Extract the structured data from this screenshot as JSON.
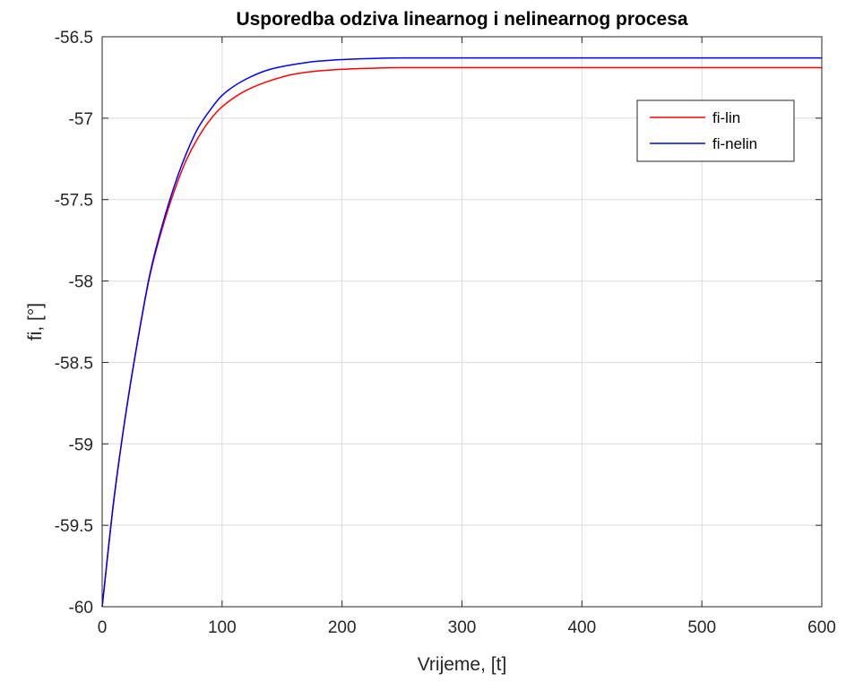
{
  "chart_data": {
    "type": "line",
    "title": "Usporedba odziva linearnog i nelinearnog procesa",
    "xlabel": "Vrijeme, [t]",
    "ylabel": "fi, [°]",
    "xlim": [
      0,
      600
    ],
    "ylim": [
      -60,
      -56.5
    ],
    "xticks": [
      0,
      100,
      200,
      300,
      400,
      500,
      600
    ],
    "xtick_labels": [
      "0",
      "100",
      "200",
      "300",
      "400",
      "500",
      "600"
    ],
    "yticks": [
      -60,
      -59.5,
      -59,
      -58.5,
      -58,
      -57.5,
      -57,
      -56.5
    ],
    "ytick_labels": [
      "-60",
      "-59.5",
      "-59",
      "-58.5",
      "-58",
      "-57.5",
      "-57",
      "-56.5"
    ],
    "grid": true,
    "legend_position": "top-right",
    "series": [
      {
        "name": "fi-lin",
        "color": "#ff0000",
        "x": [
          0,
          10,
          20,
          30,
          40,
          50,
          60,
          70,
          80,
          90,
          100,
          120,
          140,
          160,
          180,
          200,
          250,
          300,
          400,
          500,
          600
        ],
        "y": [
          -60,
          -59.33,
          -58.8,
          -58.35,
          -57.96,
          -57.68,
          -57.45,
          -57.26,
          -57.12,
          -57.01,
          -56.93,
          -56.83,
          -56.77,
          -56.73,
          -56.71,
          -56.7,
          -56.69,
          -56.69,
          -56.69,
          -56.69,
          -56.69
        ]
      },
      {
        "name": "fi-nelin",
        "color": "#0000ff",
        "x": [
          0,
          10,
          20,
          30,
          40,
          50,
          60,
          70,
          80,
          90,
          100,
          120,
          140,
          160,
          180,
          200,
          250,
          300,
          400,
          500,
          600
        ],
        "y": [
          -60,
          -59.33,
          -58.8,
          -58.35,
          -57.95,
          -57.66,
          -57.42,
          -57.22,
          -57.06,
          -56.95,
          -56.86,
          -56.76,
          -56.7,
          -56.67,
          -56.65,
          -56.64,
          -56.63,
          -56.63,
          -56.63,
          -56.63,
          -56.63
        ]
      }
    ]
  }
}
